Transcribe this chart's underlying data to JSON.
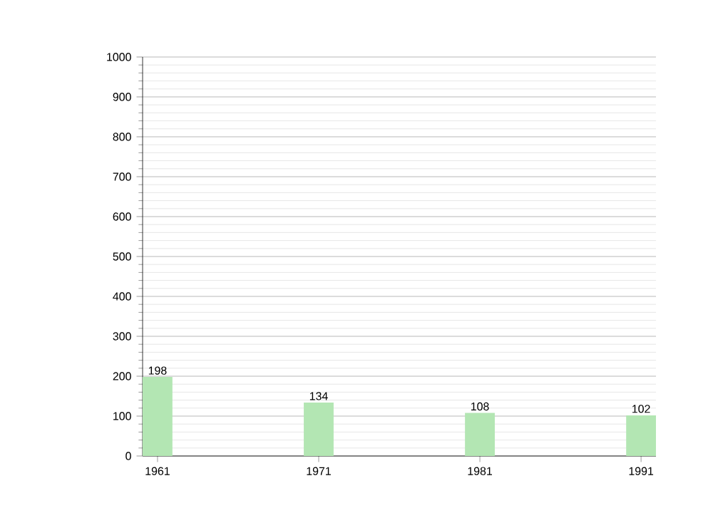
{
  "chart_data": {
    "type": "bar",
    "categories": [
      "1961",
      "1971",
      "1981",
      "1991"
    ],
    "values": [
      198,
      134,
      108,
      102
    ],
    "color": "#b3e6b3",
    "ylim": [
      0,
      1000
    ],
    "yticks": [
      0,
      100,
      200,
      300,
      400,
      500,
      600,
      700,
      800,
      900,
      1000
    ],
    "grid": "y",
    "data_labels": true
  }
}
